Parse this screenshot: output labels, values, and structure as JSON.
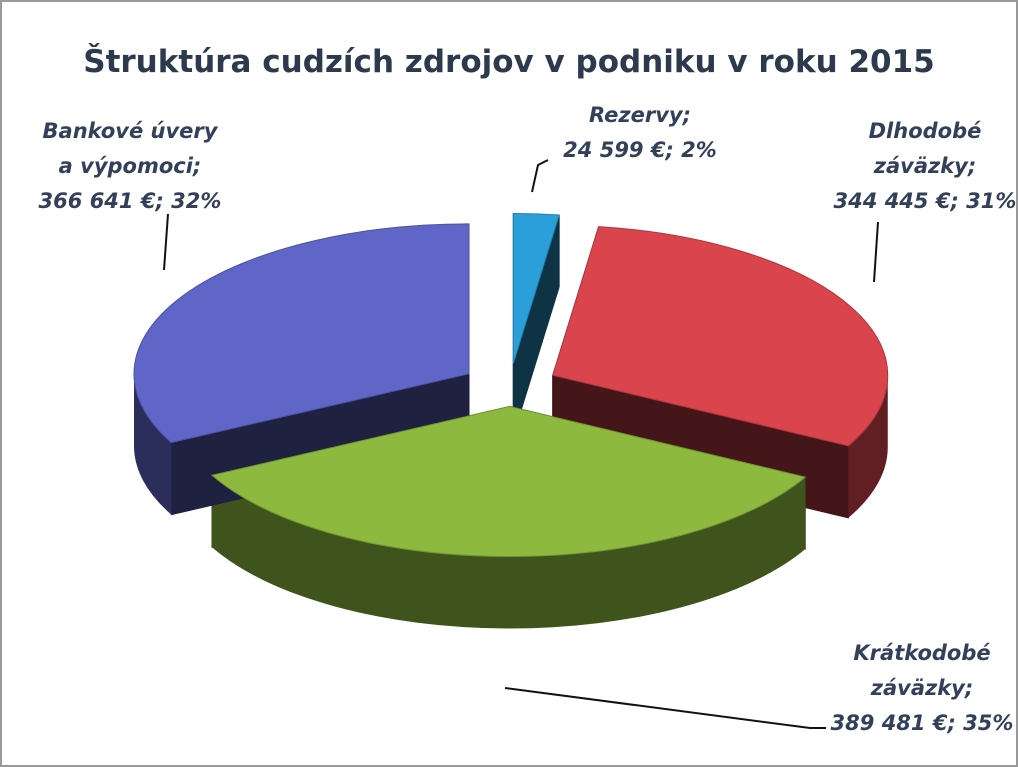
{
  "chart_data": {
    "type": "pie3d",
    "title": "Štruktúra cudzích zdrojov v podniku v roku 2015",
    "values": [
      24599,
      344445,
      389481,
      366641
    ],
    "value_labels": [
      [
        "Rezervy;",
        "24 599 €; 2%"
      ],
      [
        "Dlhodobé",
        "záväzky;",
        "344 445 €; 31%"
      ],
      [
        "Krátkodobé",
        "záväzky;",
        "389 481 €; 35%"
      ],
      [
        "Bankové úvery",
        "a výpomoci;",
        "366 641 €; 32%"
      ]
    ],
    "colors": [
      "#2b9fd9",
      "#d9444d",
      "#8dba3e",
      "#5f66c8"
    ]
  }
}
